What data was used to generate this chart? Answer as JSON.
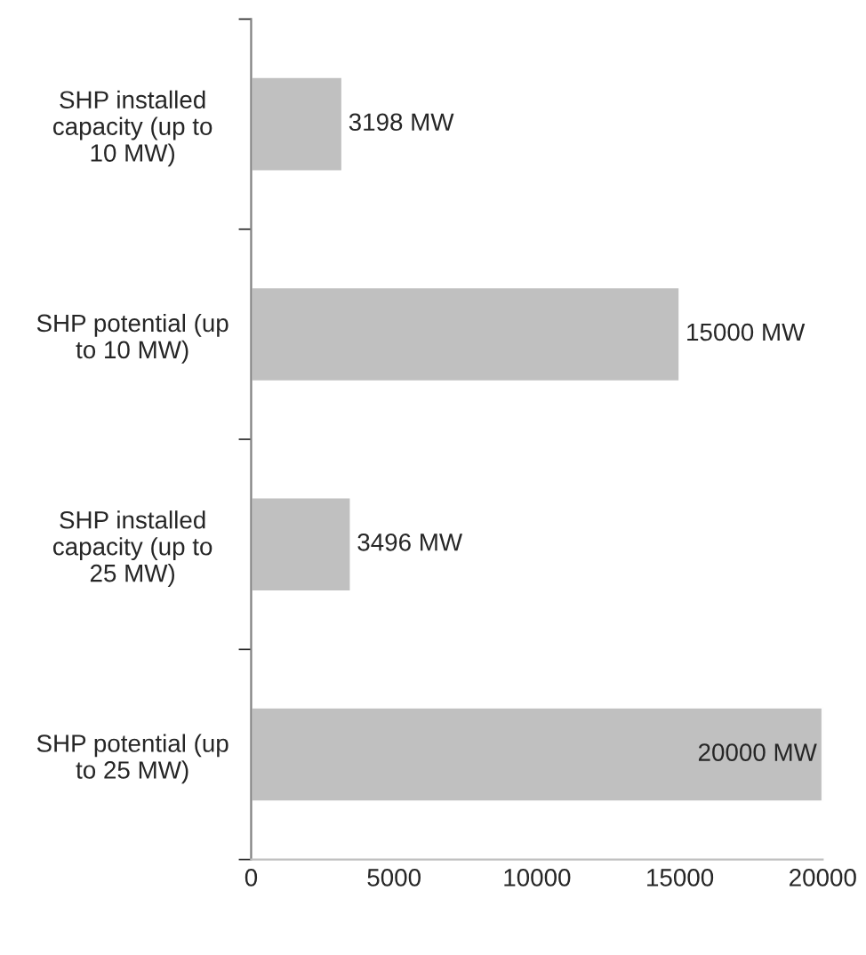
{
  "chart_data": {
    "type": "bar",
    "orientation": "horizontal",
    "categories": [
      "SHP installed\ncapacity (up to\n10 MW)",
      "SHP potential (up\nto 10 MW)",
      "SHP installed\ncapacity (up to\n25 MW)",
      "SHP potential (up\nto 25 MW)"
    ],
    "values": [
      3198,
      15000,
      3496,
      20000
    ],
    "value_labels": [
      "3198 MW",
      "15000 MW",
      "3496 MW",
      "20000 MW"
    ],
    "color": "#c0c0c0",
    "xlim": [
      0,
      20000
    ],
    "xticks": [
      0,
      5000,
      10000,
      15000,
      20000
    ],
    "grid": false,
    "legend": false
  }
}
